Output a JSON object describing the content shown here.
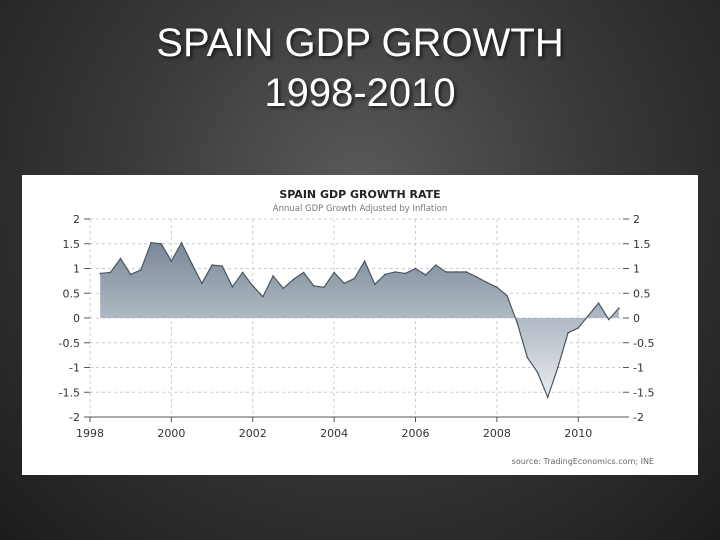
{
  "slide": {
    "title_line1": "SPAIN GDP GROWTH",
    "title_line2": "1998-2010"
  },
  "colors": {
    "area_top": "#7a8898",
    "area_bottom": "#e8ecef",
    "line": "#4a5560",
    "grid": "#cccccc"
  },
  "chart_data": {
    "type": "area",
    "title": "SPAIN GDP GROWTH RATE",
    "subtitle": "Annual GDP Growth Adjusted by Inflation",
    "source": "source: TradingEconomics.com; INE",
    "xlim": [
      1998,
      2011.1
    ],
    "ylim": [
      -2,
      2
    ],
    "x_ticks": [
      1998,
      2000,
      2002,
      2004,
      2006,
      2008,
      2010
    ],
    "y_ticks": [
      2,
      1.5,
      1,
      0.5,
      0,
      -0.5,
      -1,
      -1.5,
      -2
    ],
    "y_tick_labels_left": [
      "2",
      "1.5",
      "1",
      "0.5",
      "0",
      "-0.5",
      "-1",
      "-1.5",
      "-2"
    ],
    "y_tick_labels_right": [
      "2",
      "1.5",
      "1",
      "0.5",
      "0",
      "-0.5",
      "-1",
      "-1.5",
      "-2"
    ],
    "x_tick_labels": [
      "1998",
      "2000",
      "2002",
      "2004",
      "2006",
      "2008",
      "2010"
    ],
    "grid": true,
    "series": [
      {
        "name": "GDP Growth Rate",
        "x": [
          1998.25,
          1998.5,
          1998.75,
          1999.0,
          1999.25,
          1999.5,
          1999.75,
          2000.0,
          2000.25,
          2000.5,
          2000.75,
          2001.0,
          2001.25,
          2001.5,
          2001.75,
          2002.0,
          2002.25,
          2002.5,
          2002.75,
          2003.0,
          2003.25,
          2003.5,
          2003.75,
          2004.0,
          2004.25,
          2004.5,
          2004.75,
          2005.0,
          2005.25,
          2005.5,
          2005.75,
          2006.0,
          2006.25,
          2006.5,
          2006.75,
          2007.0,
          2007.25,
          2007.5,
          2007.75,
          2008.0,
          2008.25,
          2008.5,
          2008.75,
          2009.0,
          2009.25,
          2009.5,
          2009.75,
          2010.0,
          2010.25,
          2010.5,
          2010.75,
          2011.0
        ],
        "values": [
          0.9,
          0.92,
          1.2,
          0.88,
          0.97,
          1.52,
          1.5,
          1.15,
          1.52,
          1.1,
          0.7,
          1.07,
          1.05,
          0.63,
          0.92,
          0.65,
          0.43,
          0.85,
          0.6,
          0.78,
          0.92,
          0.65,
          0.62,
          0.92,
          0.7,
          0.8,
          1.15,
          0.68,
          0.88,
          0.93,
          0.9,
          1.0,
          0.87,
          1.07,
          0.93,
          0.93,
          0.93,
          0.83,
          0.72,
          0.62,
          0.45,
          -0.1,
          -0.8,
          -1.1,
          -1.6,
          -1.0,
          -0.3,
          -0.2,
          0.05,
          0.3,
          -0.03,
          0.2
        ]
      }
    ]
  }
}
